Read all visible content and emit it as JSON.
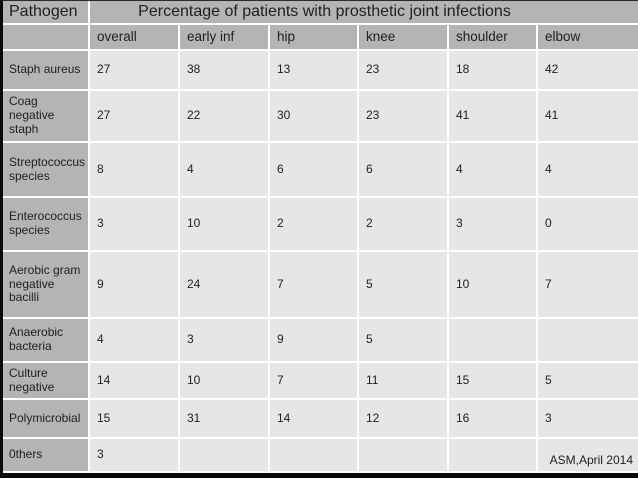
{
  "chart_data": {
    "type": "table",
    "title": "Percentage of patients with prosthetic joint infections",
    "corner_label": "Pathogen",
    "columns": [
      "overall",
      "early inf",
      "hip",
      "knee",
      "shoulder",
      "elbow"
    ],
    "rows": [
      {
        "pathogen": "Staph aureus",
        "values": [
          "27",
          "38",
          "13",
          "23",
          "18",
          "42"
        ]
      },
      {
        "pathogen": "Coag negative staph",
        "values": [
          "27",
          "22",
          "30",
          "23",
          "41",
          "41"
        ]
      },
      {
        "pathogen": "Streptococcus species",
        "values": [
          "8",
          "4",
          "6",
          "6",
          "4",
          "4"
        ]
      },
      {
        "pathogen": "Enterococcus species",
        "values": [
          "3",
          "10",
          "2",
          "2",
          "3",
          "0"
        ]
      },
      {
        "pathogen": "Aerobic gram negative bacilli",
        "values": [
          "9",
          "24",
          "7",
          "5",
          "10",
          "7"
        ]
      },
      {
        "pathogen": "Anaerobic bacteria",
        "values": [
          "4",
          "3",
          "9",
          "5",
          "",
          ""
        ]
      },
      {
        "pathogen": "Culture negative",
        "values": [
          "14",
          "10",
          "7",
          "11",
          "15",
          "5"
        ]
      },
      {
        "pathogen": "Polymicrobial",
        "values": [
          "15",
          "31",
          "14",
          "12",
          "16",
          "3"
        ]
      },
      {
        "pathogen": "0thers",
        "values": [
          "3",
          "",
          "",
          "",
          "",
          ""
        ]
      }
    ],
    "footnote": "ASM,April 2014",
    "layout": {
      "legend": "none",
      "grid": "white gaps between cells"
    }
  },
  "colors": {
    "header_bg": "#b4b4b4",
    "cell_bg": "#e6e6e6",
    "gap": "#ffffff",
    "border": "#0a0a0a",
    "text": "#212121"
  }
}
